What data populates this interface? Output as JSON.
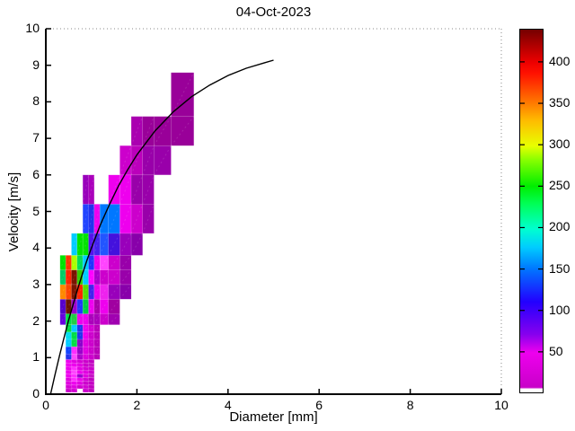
{
  "figure": {
    "title": "04-Oct-2023",
    "xlabel": "Diameter [mm]",
    "ylabel": "Velocity [m/s]",
    "xlim": [
      0,
      10
    ],
    "ylim": [
      0,
      10
    ],
    "xticks": [
      0,
      2,
      4,
      6,
      8,
      10
    ],
    "yticks": [
      0,
      1,
      2,
      3,
      4,
      5,
      6,
      7,
      8,
      9,
      10
    ]
  },
  "colorbar": {
    "min": 0,
    "max": 440,
    "ticks": [
      50,
      100,
      150,
      200,
      250,
      300,
      350,
      400
    ],
    "stops": [
      {
        "v": 0,
        "c": "#ffffff"
      },
      {
        "v": 4,
        "c": "#ffffff"
      },
      {
        "v": 6,
        "c": "#c800c8"
      },
      {
        "v": 48,
        "c": "#ee00ee"
      },
      {
        "v": 70,
        "c": "#8800ee"
      },
      {
        "v": 110,
        "c": "#2200ff"
      },
      {
        "v": 150,
        "c": "#0077ff"
      },
      {
        "v": 176,
        "c": "#00ccff"
      },
      {
        "v": 198,
        "c": "#00ffd0"
      },
      {
        "v": 229,
        "c": "#00ff55"
      },
      {
        "v": 250,
        "c": "#00ee00"
      },
      {
        "v": 282,
        "c": "#88ff00"
      },
      {
        "v": 299,
        "c": "#e8ff00"
      },
      {
        "v": 330,
        "c": "#ffbb00"
      },
      {
        "v": 352,
        "c": "#ff7700"
      },
      {
        "v": 387,
        "c": "#ff1100"
      },
      {
        "v": 400,
        "c": "#ee0000"
      },
      {
        "v": 440,
        "c": "#750000"
      }
    ]
  },
  "chart_data": {
    "type": "heatmap",
    "title": "04-Oct-2023",
    "xlabel": "Diameter [mm]",
    "ylabel": "Velocity [m/s]",
    "xlim": [
      0,
      10
    ],
    "ylim": [
      0,
      10
    ],
    "color_range": [
      0,
      440
    ],
    "legend": "none",
    "grid": false,
    "cells_format": [
      "d_min",
      "d_max",
      "v_min",
      "v_max",
      "color(count)"
    ],
    "cells": [
      [
        0.4373,
        0.5623,
        0.05,
        0.15,
        "#cc00cc"
      ],
      [
        0.5623,
        0.6873,
        0.05,
        0.15,
        "#d400d4"
      ],
      [
        0.8123,
        0.9373,
        0.05,
        0.15,
        "#cc00cc"
      ],
      [
        0.9373,
        1.0623,
        0.05,
        0.15,
        "#c000c0"
      ],
      [
        0.4373,
        0.5623,
        0.15,
        0.25,
        "#d400d4"
      ],
      [
        0.5623,
        0.6873,
        0.15,
        0.25,
        "#e100e1"
      ],
      [
        0.6873,
        0.8123,
        0.15,
        0.25,
        "#cc00cc"
      ],
      [
        0.8123,
        0.9373,
        0.15,
        0.25,
        "#d400d4"
      ],
      [
        0.9373,
        1.0623,
        0.15,
        0.25,
        "#c000c0"
      ],
      [
        0.4373,
        0.5623,
        0.25,
        0.35,
        "#e100e1"
      ],
      [
        0.5623,
        0.6873,
        0.25,
        0.35,
        "#ee00ee"
      ],
      [
        0.6873,
        0.8123,
        0.25,
        0.35,
        "#e100e1"
      ],
      [
        0.8123,
        0.9373,
        0.25,
        0.35,
        "#cc00cc"
      ],
      [
        0.9373,
        1.0623,
        0.25,
        0.35,
        "#c400c4"
      ],
      [
        0.4373,
        0.5623,
        0.35,
        0.45,
        "#e100e1"
      ],
      [
        0.5623,
        0.6873,
        0.35,
        0.45,
        "#ff2bff"
      ],
      [
        0.6873,
        0.8123,
        0.35,
        0.45,
        "#ee00ee"
      ],
      [
        0.8123,
        0.9373,
        0.35,
        0.45,
        "#d400d4"
      ],
      [
        0.9373,
        1.0623,
        0.35,
        0.45,
        "#c000c0"
      ],
      [
        0.4373,
        0.5623,
        0.45,
        0.55,
        "#ee00ee"
      ],
      [
        0.5623,
        0.6873,
        0.45,
        0.55,
        "#ff2bff"
      ],
      [
        0.6873,
        0.8123,
        0.45,
        0.55,
        "#9900cc"
      ],
      [
        0.8123,
        0.9373,
        0.45,
        0.55,
        "#e100e1"
      ],
      [
        0.9373,
        1.0623,
        0.45,
        0.55,
        "#c613c6"
      ],
      [
        0.4373,
        0.5623,
        0.55,
        0.65,
        "#ee00ee"
      ],
      [
        0.5623,
        0.6873,
        0.55,
        0.65,
        "#ff44ff"
      ],
      [
        0.6873,
        0.8123,
        0.55,
        0.65,
        "#ee00ee"
      ],
      [
        0.8123,
        0.9373,
        0.55,
        0.65,
        "#e100e1"
      ],
      [
        0.9373,
        1.0623,
        0.55,
        0.65,
        "#cc00cc"
      ],
      [
        0.4373,
        0.5623,
        0.65,
        0.75,
        "#ee00ee"
      ],
      [
        0.5623,
        0.6873,
        0.65,
        0.75,
        "#ff2bff"
      ],
      [
        0.6873,
        0.8123,
        0.65,
        0.75,
        "#e100e1"
      ],
      [
        0.8123,
        0.9373,
        0.65,
        0.75,
        "#d400d4"
      ],
      [
        0.9373,
        1.0623,
        0.65,
        0.75,
        "#cc00cc"
      ],
      [
        0.4373,
        0.5623,
        0.75,
        0.85,
        "#f000f0"
      ],
      [
        0.5623,
        0.6873,
        0.75,
        0.85,
        "#ee00ee"
      ],
      [
        0.6873,
        0.8123,
        0.75,
        0.85,
        "#e100e1"
      ],
      [
        0.8123,
        0.9373,
        0.75,
        0.85,
        "#cc00cc"
      ],
      [
        0.9373,
        1.0623,
        0.75,
        0.85,
        "#c613c6"
      ],
      [
        0.4373,
        0.5623,
        0.85,
        0.95,
        "#ee00ee"
      ],
      [
        0.5623,
        0.6873,
        0.85,
        0.95,
        "#e100e1"
      ],
      [
        0.6873,
        0.8123,
        0.85,
        0.95,
        "#d400d4"
      ],
      [
        0.8123,
        0.9373,
        0.85,
        0.95,
        "#cc00cc"
      ],
      [
        0.9373,
        1.0623,
        0.85,
        0.95,
        "#c000c0"
      ],
      [
        0.4373,
        0.5623,
        0.95,
        1.1,
        "#2233ee"
      ],
      [
        0.5623,
        0.6873,
        0.95,
        1.1,
        "#ff44ff"
      ],
      [
        0.6873,
        0.8123,
        0.95,
        1.1,
        "#aa00cc"
      ],
      [
        0.8123,
        0.9373,
        0.95,
        1.1,
        "#dd00dd"
      ],
      [
        0.9373,
        1.0623,
        0.95,
        1.1,
        "#cc00cc"
      ],
      [
        1.0623,
        1.1873,
        0.95,
        1.1,
        "#b800b8"
      ],
      [
        0.4373,
        0.5623,
        1.1,
        1.3,
        "#1144ff"
      ],
      [
        0.5623,
        0.6873,
        1.1,
        1.3,
        "#ff2bff"
      ],
      [
        0.6873,
        0.8123,
        1.1,
        1.3,
        "#9900cc"
      ],
      [
        0.8123,
        0.9373,
        1.1,
        1.3,
        "#e100e1"
      ],
      [
        0.9373,
        1.0623,
        1.1,
        1.3,
        "#cc00cc"
      ],
      [
        1.0623,
        1.1873,
        1.1,
        1.3,
        "#b800b8"
      ],
      [
        0.4373,
        0.5623,
        1.3,
        1.5,
        "#00ccff"
      ],
      [
        0.5623,
        0.6873,
        1.3,
        1.5,
        "#00dd44"
      ],
      [
        0.6873,
        0.8123,
        1.3,
        1.5,
        "#8800cc"
      ],
      [
        0.8123,
        0.9373,
        1.3,
        1.5,
        "#e100e1"
      ],
      [
        0.9373,
        1.0623,
        1.3,
        1.5,
        "#cc00cc"
      ],
      [
        1.0623,
        1.1873,
        1.3,
        1.5,
        "#b800b8"
      ],
      [
        0.4373,
        0.5623,
        1.5,
        1.7,
        "#00ddee"
      ],
      [
        0.5623,
        0.6873,
        1.5,
        1.7,
        "#00dd44"
      ],
      [
        0.6873,
        0.8123,
        1.5,
        1.7,
        "#2233ee"
      ],
      [
        0.8123,
        0.9373,
        1.5,
        1.7,
        "#ee00ee"
      ],
      [
        0.9373,
        1.0623,
        1.5,
        1.7,
        "#cc00cc"
      ],
      [
        1.0623,
        1.1873,
        1.5,
        1.7,
        "#b800b8"
      ],
      [
        0.4373,
        0.5623,
        1.7,
        1.9,
        "#00dd44"
      ],
      [
        0.5623,
        0.6873,
        1.7,
        1.9,
        "#00ccff"
      ],
      [
        0.6873,
        0.8123,
        1.7,
        1.9,
        "#2233ee"
      ],
      [
        0.8123,
        0.9373,
        1.7,
        1.9,
        "#ee00ee"
      ],
      [
        0.9373,
        1.0623,
        1.7,
        1.9,
        "#d400d4"
      ],
      [
        1.0623,
        1.1873,
        1.7,
        1.9,
        "#b800b8"
      ],
      [
        0.3123,
        0.4373,
        1.9,
        2.2,
        "#6600dd"
      ],
      [
        0.4373,
        0.5623,
        1.9,
        2.2,
        "#00dd44"
      ],
      [
        0.5623,
        0.6873,
        1.9,
        2.2,
        "#22cc44"
      ],
      [
        0.6873,
        0.8123,
        1.9,
        2.2,
        "#ee00ee"
      ],
      [
        0.8123,
        0.9373,
        1.9,
        2.2,
        "#ee00ee"
      ],
      [
        0.9373,
        1.0623,
        1.9,
        2.2,
        "#aa00bb"
      ],
      [
        1.0623,
        1.1873,
        1.9,
        2.2,
        "#aa00bb"
      ],
      [
        1.1873,
        1.375,
        1.9,
        2.2,
        "#cc00cc"
      ],
      [
        1.375,
        1.625,
        1.9,
        2.2,
        "#a000b0"
      ],
      [
        0.3123,
        0.4373,
        2.2,
        2.6,
        "#5500cc"
      ],
      [
        0.4373,
        0.5623,
        2.2,
        2.6,
        "#6b1200"
      ],
      [
        0.5623,
        0.6873,
        2.2,
        2.6,
        "#9900cc"
      ],
      [
        0.6873,
        0.8123,
        2.2,
        2.6,
        "#2233ff"
      ],
      [
        0.8123,
        0.9373,
        2.2,
        2.6,
        "#00cc44"
      ],
      [
        0.9373,
        1.0623,
        2.2,
        2.6,
        "#ee00ee"
      ],
      [
        1.0623,
        1.1873,
        2.2,
        2.6,
        "#aa00aa"
      ],
      [
        1.1873,
        1.375,
        2.2,
        2.6,
        "#ee00ee"
      ],
      [
        1.375,
        1.625,
        2.2,
        2.6,
        "#a000a0"
      ],
      [
        0.3123,
        0.4373,
        2.6,
        3.0,
        "#ff8800"
      ],
      [
        0.4373,
        0.5623,
        2.6,
        3.0,
        "#ff4400"
      ],
      [
        0.5623,
        0.6873,
        2.6,
        3.0,
        "#7a1400"
      ],
      [
        0.6873,
        0.8123,
        2.6,
        3.0,
        "#ff2200"
      ],
      [
        0.8123,
        0.9373,
        2.6,
        3.0,
        "#55dd00"
      ],
      [
        0.9373,
        1.0623,
        2.6,
        3.0,
        "#4422ee"
      ],
      [
        1.0623,
        1.1873,
        2.6,
        3.0,
        "#ee00ee"
      ],
      [
        1.1873,
        1.375,
        2.6,
        3.0,
        "#ee22ee"
      ],
      [
        1.375,
        1.625,
        2.6,
        3.0,
        "#9900bb"
      ],
      [
        1.625,
        1.875,
        2.6,
        3.0,
        "#8800aa"
      ],
      [
        0.3123,
        0.4373,
        3.0,
        3.4,
        "#00cc66"
      ],
      [
        0.4373,
        0.5623,
        3.0,
        3.4,
        "#ff2200"
      ],
      [
        0.5623,
        0.6873,
        3.0,
        3.4,
        "#7a1400"
      ],
      [
        0.6873,
        0.8123,
        3.0,
        3.4,
        "#33cc00"
      ],
      [
        0.8123,
        0.9373,
        3.0,
        3.4,
        "#00ccff"
      ],
      [
        0.9373,
        1.0623,
        3.0,
        3.4,
        "#ff00ff"
      ],
      [
        1.0623,
        1.1873,
        3.0,
        3.4,
        "#aa00cc"
      ],
      [
        1.1873,
        1.375,
        3.0,
        3.4,
        "#cc00cc"
      ],
      [
        1.375,
        1.625,
        3.0,
        3.4,
        "#cc00cc"
      ],
      [
        1.625,
        1.875,
        3.0,
        3.4,
        "#9900aa"
      ],
      [
        0.3123,
        0.4373,
        3.4,
        3.8,
        "#00e400"
      ],
      [
        0.4373,
        0.5623,
        3.4,
        3.8,
        "#ff3300"
      ],
      [
        0.5623,
        0.6873,
        3.4,
        3.8,
        "#aaff00"
      ],
      [
        0.6873,
        0.8123,
        3.4,
        3.8,
        "#00dd55"
      ],
      [
        0.8123,
        0.9373,
        3.4,
        3.8,
        "#00ccff"
      ],
      [
        0.9373,
        1.0623,
        3.4,
        3.8,
        "#2233ff"
      ],
      [
        1.0623,
        1.1873,
        3.4,
        3.8,
        "#ee00ee"
      ],
      [
        1.1873,
        1.375,
        3.4,
        3.8,
        "#ff44ff"
      ],
      [
        1.375,
        1.625,
        3.4,
        3.8,
        "#cc00cc"
      ],
      [
        1.625,
        1.875,
        3.4,
        3.8,
        "#9900aa"
      ],
      [
        0.5623,
        0.6873,
        3.8,
        4.4,
        "#00ccff"
      ],
      [
        0.6873,
        0.8123,
        3.8,
        4.4,
        "#00e400"
      ],
      [
        0.8123,
        0.9373,
        3.8,
        4.4,
        "#00e400"
      ],
      [
        0.9373,
        1.0623,
        3.8,
        4.4,
        "#5511ee"
      ],
      [
        1.0623,
        1.1873,
        3.8,
        4.4,
        "#4422ee"
      ],
      [
        1.1873,
        1.375,
        3.8,
        4.4,
        "#2255ff"
      ],
      [
        1.375,
        1.625,
        3.8,
        4.4,
        "#4411dd"
      ],
      [
        1.625,
        1.875,
        3.8,
        4.4,
        "#9900bb"
      ],
      [
        1.875,
        2.125,
        3.8,
        4.4,
        "#8800aa"
      ],
      [
        0.8123,
        0.9373,
        4.4,
        5.2,
        "#2244ff"
      ],
      [
        0.9373,
        1.0623,
        4.4,
        5.2,
        "#2233ee"
      ],
      [
        1.0623,
        1.1873,
        4.4,
        5.2,
        "#ee00ee"
      ],
      [
        1.1873,
        1.375,
        4.4,
        5.2,
        "#0077ff"
      ],
      [
        1.375,
        1.625,
        4.4,
        5.2,
        "#0077ff"
      ],
      [
        1.625,
        1.875,
        4.4,
        5.2,
        "#ee00ee"
      ],
      [
        1.875,
        2.125,
        4.4,
        5.2,
        "#cc00cc"
      ],
      [
        2.125,
        2.375,
        4.4,
        5.2,
        "#9900aa"
      ],
      [
        0.8123,
        0.9373,
        5.2,
        6.0,
        "#9900bb"
      ],
      [
        0.9373,
        1.0623,
        5.2,
        6.0,
        "#aa00bb"
      ],
      [
        1.375,
        1.625,
        5.2,
        6.0,
        "#ee00ee"
      ],
      [
        1.625,
        1.875,
        5.2,
        6.0,
        "#ee00ee"
      ],
      [
        1.875,
        2.125,
        5.2,
        6.0,
        "#9900aa"
      ],
      [
        2.125,
        2.375,
        5.2,
        6.0,
        "#9900aa"
      ],
      [
        1.625,
        1.875,
        6.0,
        6.8,
        "#cc00cc"
      ],
      [
        1.875,
        2.125,
        6.0,
        6.8,
        "#bb00bb"
      ],
      [
        2.125,
        2.375,
        6.0,
        6.8,
        "#9900aa"
      ],
      [
        2.375,
        2.75,
        6.0,
        6.8,
        "#9900aa"
      ],
      [
        1.875,
        2.125,
        6.8,
        7.6,
        "#aa00b0"
      ],
      [
        2.125,
        2.375,
        6.8,
        7.6,
        "#990099"
      ],
      [
        2.375,
        2.75,
        6.8,
        7.6,
        "#990099"
      ],
      [
        2.75,
        3.25,
        6.8,
        7.6,
        "#990099"
      ],
      [
        2.75,
        3.25,
        7.6,
        8.8,
        "#990099"
      ]
    ],
    "fit_curve": {
      "name": "terminal-velocity-fit-line",
      "points": [
        [
          0.105,
          0.0
        ],
        [
          0.2,
          0.52
        ],
        [
          0.3,
          1.05
        ],
        [
          0.4,
          1.55
        ],
        [
          0.5,
          2.02
        ],
        [
          0.6,
          2.46
        ],
        [
          0.7,
          2.88
        ],
        [
          0.8,
          3.28
        ],
        [
          0.9,
          3.65
        ],
        [
          1.0,
          4.0
        ],
        [
          1.2,
          4.64
        ],
        [
          1.4,
          5.2
        ],
        [
          1.6,
          5.71
        ],
        [
          1.8,
          6.15
        ],
        [
          2.0,
          6.55
        ],
        [
          2.4,
          7.21
        ],
        [
          2.8,
          7.73
        ],
        [
          3.2,
          8.14
        ],
        [
          3.6,
          8.46
        ],
        [
          4.0,
          8.72
        ],
        [
          4.4,
          8.92
        ],
        [
          4.8,
          9.07
        ],
        [
          5.0,
          9.14
        ]
      ]
    }
  }
}
